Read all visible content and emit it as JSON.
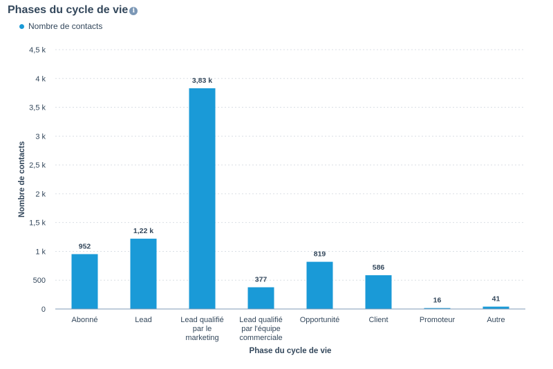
{
  "header": {
    "title": "Phases du cycle de vie",
    "info_icon": "info-icon"
  },
  "chart_data": {
    "type": "bar",
    "title": "Phases du cycle de vie",
    "xlabel": "Phase du cycle de vie",
    "ylabel": "Nombre de contacts",
    "legend": {
      "position": "top-left",
      "entries": [
        "Nombre de contacts"
      ]
    },
    "grid": true,
    "ylim": [
      0,
      4500
    ],
    "yticks": [
      {
        "value": 0,
        "label": "0"
      },
      {
        "value": 500,
        "label": "500"
      },
      {
        "value": 1000,
        "label": "1 k"
      },
      {
        "value": 1500,
        "label": "1,5 k"
      },
      {
        "value": 2000,
        "label": "2 k"
      },
      {
        "value": 2500,
        "label": "2,5 k"
      },
      {
        "value": 3000,
        "label": "3 k"
      },
      {
        "value": 3500,
        "label": "3,5 k"
      },
      {
        "value": 4000,
        "label": "4 k"
      },
      {
        "value": 4500,
        "label": "4,5 k"
      }
    ],
    "categories": [
      [
        "Abonné"
      ],
      [
        "Lead"
      ],
      [
        "Lead qualifié",
        "par le",
        "marketing"
      ],
      [
        "Lead qualifié",
        "par l'équipe",
        "commerciale"
      ],
      [
        "Opportunité"
      ],
      [
        "Client"
      ],
      [
        "Promoteur"
      ],
      [
        "Autre"
      ]
    ],
    "series": [
      {
        "name": "Nombre de contacts",
        "color": "#1a9ad7",
        "values": [
          952,
          1220,
          3830,
          377,
          819,
          586,
          16,
          41
        ],
        "labels": [
          "952",
          "1,22 k",
          "3,83 k",
          "377",
          "819",
          "586",
          "16",
          "41"
        ]
      }
    ]
  }
}
